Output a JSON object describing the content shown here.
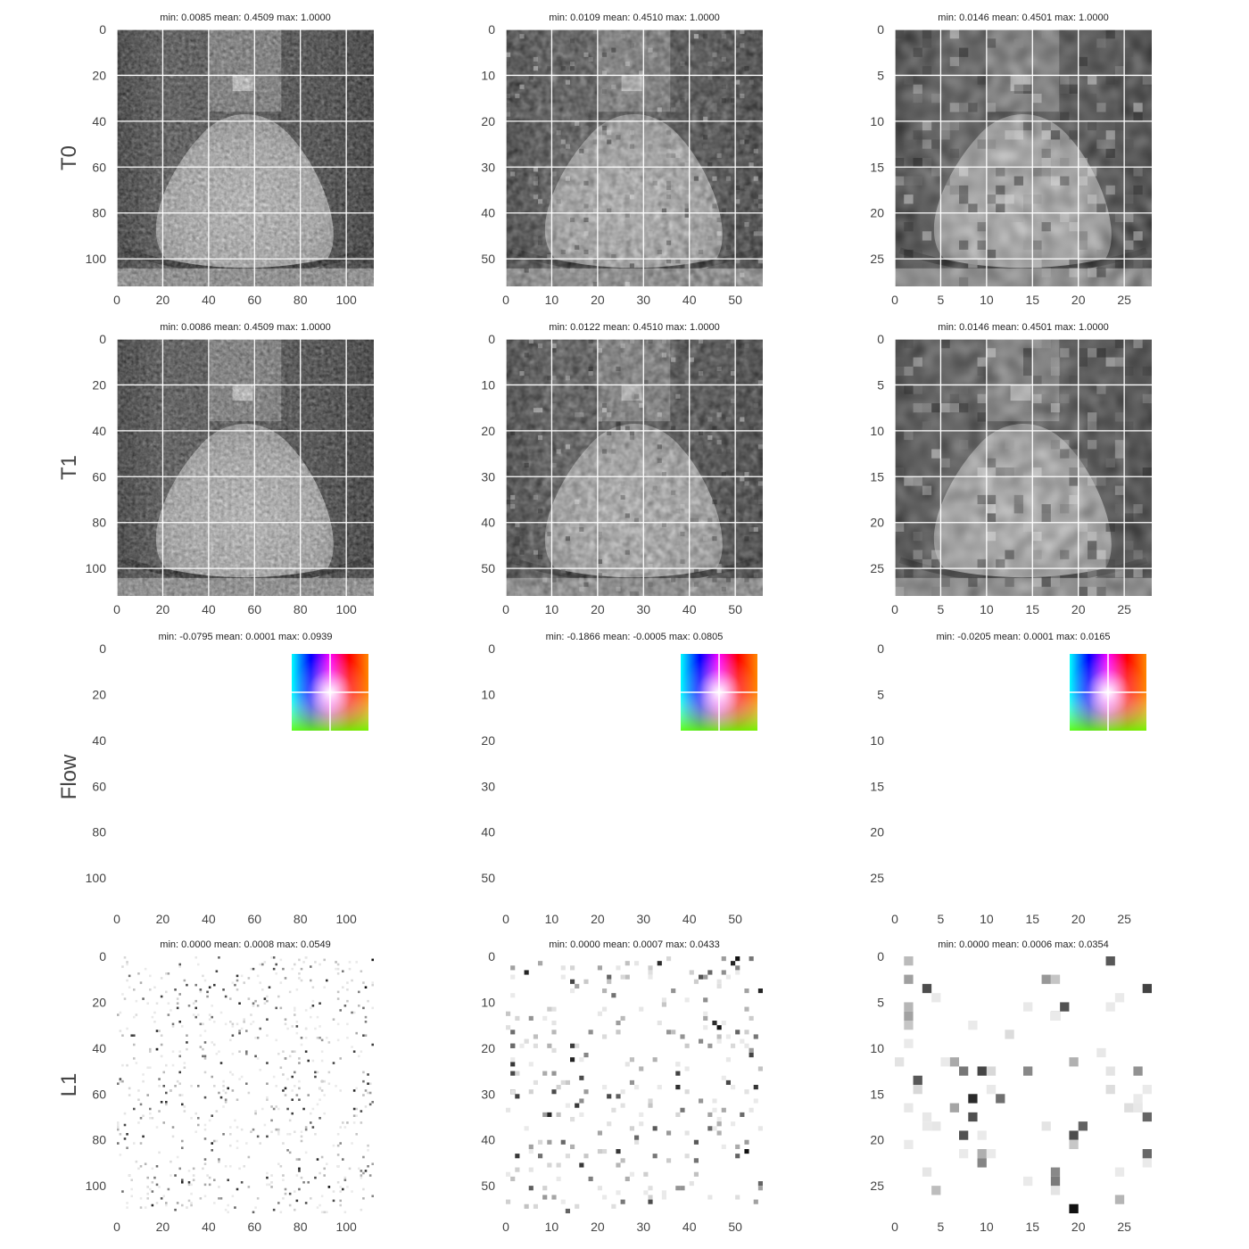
{
  "chart_data": {
    "type": "image_grid",
    "row_labels": [
      "T0",
      "T1",
      "Flow",
      "L1"
    ],
    "columns": [
      {
        "resolution": 112,
        "ticks": [
          0,
          20,
          40,
          60,
          80,
          100
        ],
        "tick_labels": [
          "0",
          "20",
          "40",
          "60",
          "80",
          "100"
        ]
      },
      {
        "resolution": 56,
        "ticks": [
          0,
          10,
          20,
          30,
          40,
          50
        ],
        "tick_labels": [
          "0",
          "10",
          "20",
          "30",
          "40",
          "50"
        ]
      },
      {
        "resolution": 28,
        "ticks": [
          0,
          5,
          10,
          15,
          20,
          25
        ],
        "tick_labels": [
          "0",
          "5",
          "10",
          "15",
          "20",
          "25"
        ]
      }
    ],
    "panels": [
      [
        {
          "title": "min: 0.0085 mean: 0.4509 max: 1.0000",
          "kind": "image",
          "min": 0.0085,
          "mean": 0.4509,
          "max": 1.0
        },
        {
          "title": "min: 0.0109 mean: 0.4510 max: 1.0000",
          "kind": "image",
          "min": 0.0109,
          "mean": 0.451,
          "max": 1.0
        },
        {
          "title": "min: 0.0146 mean: 0.4501 max: 1.0000",
          "kind": "image",
          "min": 0.0146,
          "mean": 0.4501,
          "max": 1.0
        }
      ],
      [
        {
          "title": "min: 0.0086 mean: 0.4509 max: 1.0000",
          "kind": "image",
          "min": 0.0086,
          "mean": 0.4509,
          "max": 1.0
        },
        {
          "title": "min: 0.0122 mean: 0.4510 max: 1.0000",
          "kind": "image",
          "min": 0.0122,
          "mean": 0.451,
          "max": 1.0
        },
        {
          "title": "min: 0.0146 mean: 0.4501 max: 1.0000",
          "kind": "image",
          "min": 0.0146,
          "mean": 0.4501,
          "max": 1.0
        }
      ],
      [
        {
          "title": "min: -0.0795 mean: 0.0001 max: 0.0939",
          "kind": "flow",
          "min": -0.0795,
          "mean": 0.0001,
          "max": 0.0939
        },
        {
          "title": "min: -0.1866 mean: -0.0005 max: 0.0805",
          "kind": "flow",
          "min": -0.1866,
          "mean": -0.0005,
          "max": 0.0805
        },
        {
          "title": "min: -0.0205 mean: 0.0001 max: 0.0165",
          "kind": "flow",
          "min": -0.0205,
          "mean": 0.0001,
          "max": 0.0165
        }
      ],
      [
        {
          "title": "min: 0.0000 mean: 0.0008 max: 0.0549",
          "kind": "error",
          "min": 0.0,
          "mean": 0.0008,
          "max": 0.0549
        },
        {
          "title": "min: 0.0000 mean: 0.0007 max: 0.0433",
          "kind": "error",
          "min": 0.0,
          "mean": 0.0007,
          "max": 0.0433
        },
        {
          "title": "min: 0.0000 mean: 0.0006 max: 0.0354",
          "kind": "error",
          "min": 0.0,
          "mean": 0.0006,
          "max": 0.0354
        }
      ]
    ],
    "grid": true,
    "colormap": "gray"
  }
}
